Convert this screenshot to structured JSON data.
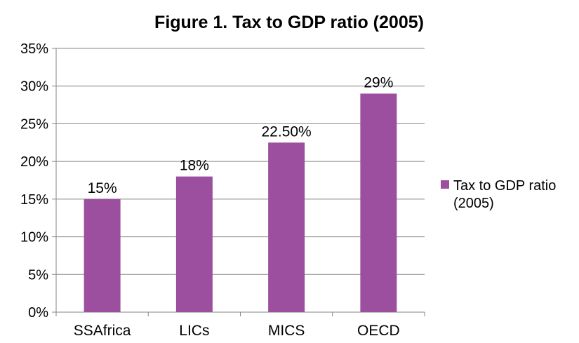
{
  "chart_data": {
    "type": "bar",
    "title": "Figure 1.  Tax to GDP ratio (2005)",
    "xlabel": "",
    "ylabel": "",
    "categories": [
      "SSAfrica",
      "LICs",
      "MICS",
      "OECD"
    ],
    "series": [
      {
        "name": "Tax to GDP ratio (2005)",
        "legend_lines": [
          "Tax to GDP ratio",
          "(2005)"
        ],
        "values": [
          15,
          18,
          22.5,
          29
        ],
        "data_labels": [
          "15%",
          "18%",
          "22.50%",
          "29%"
        ],
        "color": "#9B4F9E"
      }
    ],
    "ylim": [
      0,
      35
    ],
    "yticks": [
      0,
      5,
      10,
      15,
      20,
      25,
      30,
      35
    ],
    "ytick_labels": [
      "0%",
      "5%",
      "10%",
      "15%",
      "20%",
      "25%",
      "30%",
      "35%"
    ],
    "grid": true,
    "gridline_color": "#868686",
    "legend_position": "right"
  }
}
